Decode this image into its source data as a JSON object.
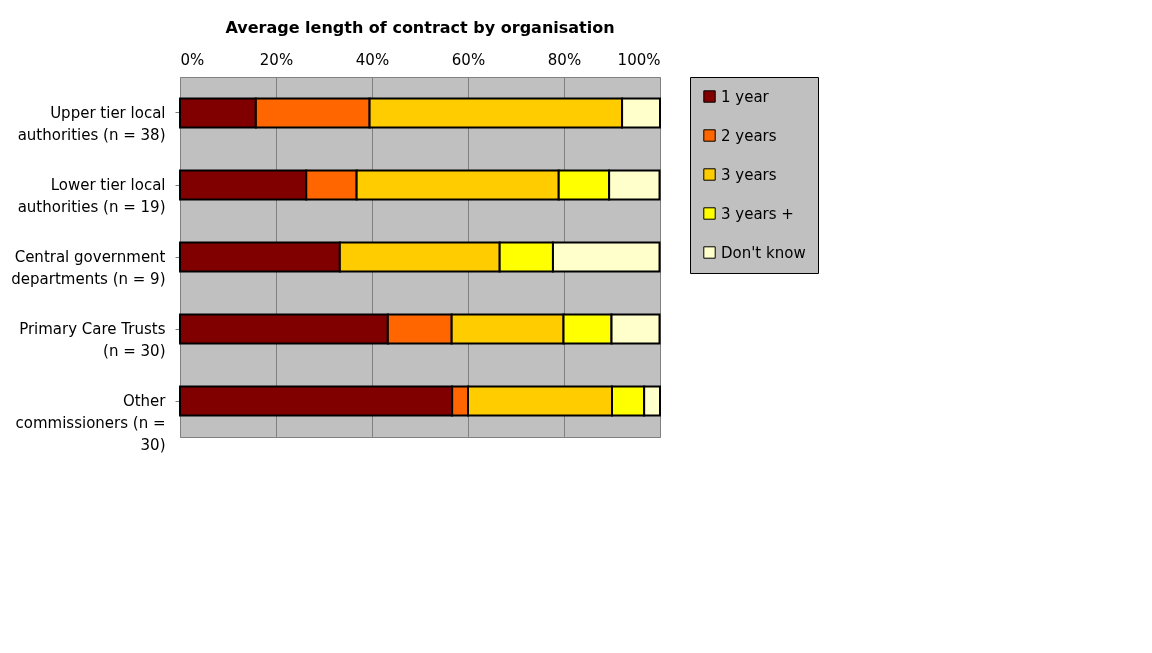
{
  "chart_data": {
    "type": "bar",
    "orientation": "horizontal",
    "stacked": true,
    "title": "Average length of contract by organisation",
    "categories": [
      "Upper tier local\nauthorities (n = 38)",
      "Lower tier local\nauthorities (n = 19)",
      "Central government\ndepartments (n = 9)",
      "Primary Care Trusts\n(n = 30)",
      "Other\ncommissioners (n =\n30)"
    ],
    "series": [
      {
        "name": "1 year",
        "color": "#800000",
        "values": [
          15.8,
          26.3,
          33.3,
          43.3,
          56.7
        ]
      },
      {
        "name": "2 years",
        "color": "#ff6600",
        "values": [
          23.7,
          10.5,
          0,
          13.3,
          3.3
        ]
      },
      {
        "name": "3 years",
        "color": "#ffcc00",
        "values": [
          52.6,
          42.1,
          33.3,
          23.3,
          30
        ]
      },
      {
        "name": "3 years +",
        "color": "#ffff00",
        "values": [
          0,
          10.5,
          11.1,
          10,
          6.7
        ]
      },
      {
        "name": "Don't know",
        "color": "#ffffcc",
        "values": [
          7.9,
          10.5,
          22.2,
          10,
          3.3
        ]
      }
    ],
    "xlim": [
      0,
      100
    ],
    "xticks": [
      {
        "value": 0,
        "label": "0%"
      },
      {
        "value": 20,
        "label": "20%"
      },
      {
        "value": 40,
        "label": "40%"
      },
      {
        "value": 60,
        "label": "60%"
      },
      {
        "value": 80,
        "label": "80%"
      },
      {
        "value": 100,
        "label": "100%"
      }
    ],
    "grid": "x",
    "legend": "right"
  }
}
